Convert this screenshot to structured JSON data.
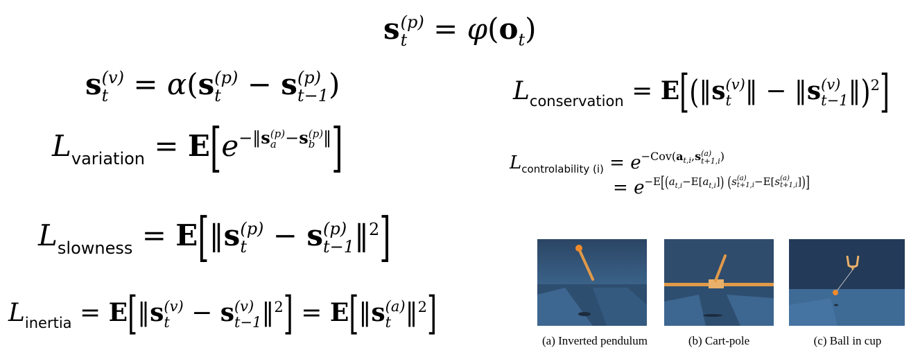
{
  "equations": {
    "eq_position": "s_t^(p) = φ(o_t)",
    "eq_velocity": "s_t^(v) = α(s_t^(p) − s_{t−1}^(p))",
    "eq_variation": "L_variation = E[ e^{−‖s_a^(p) − s_b^(p)‖} ]",
    "eq_slowness": "L_slowness = E[ ‖s_t^(p) − s_{t−1}^(p)‖² ]",
    "eq_inertia": "L_inertia = E[ ‖s_t^(v) − s_{t−1}^(v)‖² ] = E[ ‖s_t^(a)‖² ]",
    "eq_conservation": "L_conservation = E[ ( ‖s_t^(v)‖ − ‖s_{t−1}^(v)‖ )² ]",
    "eq_controlability": "L_controlability (i) = e^{−Cov(a_{t,i}, s_{t+1,i}^(a))} = e^{−E[(a_{t,i} − E[a_{t,i}])(s_{t+1,i}^(a) − E[s_{t+1,i}^(a)])]}"
  },
  "labels": {
    "variation": "variation",
    "slowness": "slowness",
    "inertia": "inertia",
    "conservation": "conservation",
    "controlability": "controlability (i)"
  },
  "figures": [
    {
      "caption": "(a) Inverted pendulum"
    },
    {
      "caption": "(b) Cart-pole"
    },
    {
      "caption": "(c) Ball in cup"
    }
  ],
  "colors": {
    "scene_sky": "#2f4d6e",
    "scene_floor": "#3a5f86",
    "pole_orange": "#e09a4a",
    "ball_orange": "#f08a2a"
  }
}
